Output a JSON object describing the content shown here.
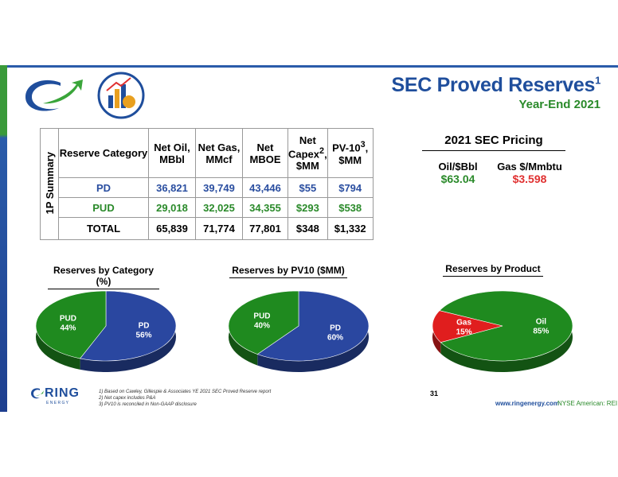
{
  "header": {
    "title": "SEC Proved Reserves",
    "title_superscript": "1",
    "subtitle": "Year-End 2021"
  },
  "summary_table": {
    "side_label": "1P Summary",
    "headers": {
      "category": "Reserve Category",
      "net_oil": "Net Oil,",
      "net_oil_unit": "MBbl",
      "net_gas": "Net Gas,",
      "net_gas_unit": "MMcf",
      "net_mboe": "Net",
      "net_mboe_unit": "MBOE",
      "capex": "Net",
      "capex_2": "Capex",
      "capex_sup": "2",
      "capex_unit": "$MM",
      "pv": "PV-10",
      "pv_sup": "3",
      "pv_unit": "$MM"
    },
    "rows": [
      {
        "category": "PD",
        "oil": "36,821",
        "gas": "39,749",
        "mboe": "43,446",
        "capex": "$55",
        "pv": "$794"
      },
      {
        "category": "PUD",
        "oil": "29,018",
        "gas": "32,025",
        "mboe": "34,355",
        "capex": "$293",
        "pv": "$538"
      },
      {
        "category": "TOTAL",
        "oil": "65,839",
        "gas": "71,774",
        "mboe": "77,801",
        "capex": "$348",
        "pv": "$1,332"
      }
    ]
  },
  "pricing": {
    "title": "2021 SEC Pricing",
    "oil_label": "Oil/$Bbl",
    "oil_value": "$63.04",
    "gas_label": "Gas $/Mmbtu",
    "gas_value": "$3.598"
  },
  "chart_data": [
    {
      "type": "pie",
      "title": "Reserves by Category (%)",
      "slices": [
        {
          "name": "PD",
          "value": 56,
          "label": "56%",
          "color": "#2a47a0"
        },
        {
          "name": "PUD",
          "value": 44,
          "label": "44%",
          "color": "#1f8a1f"
        }
      ]
    },
    {
      "type": "pie",
      "title": "Reserves by PV10 ($MM)",
      "slices": [
        {
          "name": "PD",
          "value": 60,
          "label": "60%",
          "color": "#2a47a0"
        },
        {
          "name": "PUD",
          "value": 40,
          "label": "40%",
          "color": "#1f8a1f"
        }
      ]
    },
    {
      "type": "pie",
      "title": "Reserves by Product",
      "slices": [
        {
          "name": "Oil",
          "value": 85,
          "label": "85%",
          "color": "#1f8a1f"
        },
        {
          "name": "Gas",
          "value": 15,
          "label": "15%",
          "color": "#e01e1e"
        }
      ]
    }
  ],
  "footer": {
    "logo_text": "RING",
    "logo_subtext": "E N E R G Y",
    "footnotes": [
      "1)    Based on Cawley, Gillespie & Associates YE 2021 SEC Proved Reserve report",
      "2)    Net capex includes P&A",
      "3)    PV10 is reconciled in Non-GAAP disclosure"
    ],
    "page_number": "31",
    "url": "www.ringenergy.com",
    "exchange": "NYSE American: REI"
  },
  "colors": {
    "brand_blue": "#1f4e9c",
    "brand_green": "#2a8a2a",
    "gas_red": "#e03030"
  }
}
